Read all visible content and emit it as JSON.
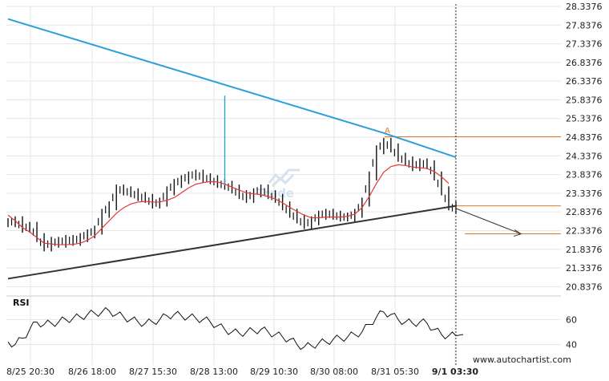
{
  "chart_data": {
    "type": "line",
    "y_ticks": [
      "28.3376",
      "27.8376",
      "27.3376",
      "26.8376",
      "26.3376",
      "25.8376",
      "25.3376",
      "24.8376",
      "24.3376",
      "23.8376",
      "23.3376",
      "22.8376",
      "22.3376",
      "21.8376",
      "21.3376",
      "20.8376"
    ],
    "ylim": [
      20.7376,
      28.3376
    ],
    "x_ticks": [
      "8/25 20:30",
      "8/26 18:00",
      "8/27 15:30",
      "8/28 13:00",
      "8/29 10:30",
      "8/30 08:00",
      "8/31 05:30",
      "9/1 03:30"
    ],
    "price": [
      22.55,
      22.6,
      22.4,
      22.45,
      22.15,
      21.9,
      22.05,
      22.0,
      22.1,
      22.05,
      22.15,
      22.25,
      22.35,
      22.8,
      23.0,
      23.45,
      23.4,
      23.35,
      23.25,
      23.2,
      23.05,
      23.1,
      23.4,
      23.6,
      23.7,
      23.8,
      23.85,
      23.75,
      23.7,
      23.6,
      23.55,
      23.45,
      23.3,
      23.2,
      23.35,
      23.45,
      23.3,
      23.2,
      23.0,
      22.8,
      22.65,
      22.5,
      22.6,
      22.75,
      22.8,
      22.75,
      22.7,
      22.7,
      22.8,
      23.1,
      23.8,
      24.5,
      24.7,
      24.55,
      24.3,
      24.2,
      24.05,
      24.15,
      24.1,
      23.8,
      23.4,
      23.0,
      22.9
    ],
    "ma": [
      22.75,
      22.6,
      22.42,
      22.3,
      22.15,
      22.0,
      21.98,
      21.96,
      21.96,
      21.97,
      22.0,
      22.08,
      22.2,
      22.4,
      22.6,
      22.8,
      22.95,
      23.05,
      23.1,
      23.12,
      23.1,
      23.1,
      23.15,
      23.22,
      23.35,
      23.48,
      23.58,
      23.62,
      23.65,
      23.64,
      23.58,
      23.5,
      23.42,
      23.35,
      23.32,
      23.3,
      23.25,
      23.18,
      23.08,
      22.96,
      22.85,
      22.75,
      22.68,
      22.68,
      22.7,
      22.7,
      22.7,
      22.72,
      22.78,
      22.95,
      23.25,
      23.6,
      23.9,
      24.05,
      24.1,
      24.08,
      24.04,
      24.02,
      24.0,
      23.92,
      23.78,
      23.6
    ],
    "spike": {
      "index": 30,
      "high": 25.95
    },
    "resistance": [
      [
        0,
        28.0
      ],
      [
        52,
        24.95
      ],
      [
        62,
        24.3
      ]
    ],
    "support": [
      [
        0,
        21.05
      ],
      [
        62,
        23.0
      ]
    ],
    "forecast": [
      [
        62,
        22.93
      ],
      [
        71,
        22.25
      ]
    ],
    "level_a": 24.85,
    "level_support": 23.0,
    "level_target": 22.25,
    "point_label": "A",
    "rsi": [
      42,
      40,
      45,
      52,
      58,
      56,
      57,
      58,
      60,
      61,
      62,
      64,
      65,
      66,
      67,
      64,
      62,
      60,
      58,
      57,
      58,
      60,
      63,
      64,
      63,
      62,
      61,
      60,
      58,
      55,
      52,
      50,
      49,
      50,
      51,
      52,
      50,
      48,
      46,
      44,
      40,
      38,
      39,
      41,
      42,
      44,
      45,
      46,
      48,
      50,
      56,
      62,
      66,
      64,
      60,
      58,
      57,
      58,
      57,
      52,
      48,
      47,
      47
    ],
    "rsi_label": "RSI",
    "rsi_ticks": [
      "60",
      "40"
    ],
    "rsi_range": [
      30,
      75
    ]
  },
  "watermark": "Trade",
  "credit": "www.autochartist.com",
  "colors": {
    "resistance": "#2e9fd8",
    "support": "#333333",
    "ma": "#e03a3a",
    "levels": "#e0772a",
    "candle": "#111111",
    "grid": "#e6e6e6"
  }
}
